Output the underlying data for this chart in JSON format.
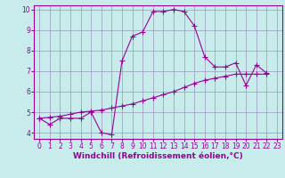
{
  "xlabel": "Windchill (Refroidissement éolien,°C)",
  "background_color": "#c8ecec",
  "line_color": "#990099",
  "grid_color": "#9999bb",
  "xlim": [
    -0.5,
    23.5
  ],
  "ylim": [
    3.7,
    10.2
  ],
  "xticks": [
    0,
    1,
    2,
    3,
    4,
    5,
    6,
    7,
    8,
    9,
    10,
    11,
    12,
    13,
    14,
    15,
    16,
    17,
    18,
    19,
    20,
    21,
    22,
    23
  ],
  "yticks": [
    4,
    5,
    6,
    7,
    8,
    9,
    10
  ],
  "curve1_x": [
    0,
    1,
    2,
    3,
    4,
    5,
    6,
    7,
    8,
    9,
    10,
    11,
    12,
    13,
    14,
    15,
    16,
    17,
    18,
    19,
    20,
    21,
    22
  ],
  "curve1_y": [
    4.7,
    4.4,
    4.7,
    4.7,
    4.7,
    5.0,
    4.0,
    3.9,
    7.5,
    8.7,
    8.9,
    9.9,
    9.9,
    10.0,
    9.9,
    9.2,
    7.7,
    7.2,
    7.2,
    7.4,
    6.3,
    7.3,
    6.9
  ],
  "curve2_x": [
    0,
    1,
    2,
    3,
    4,
    5,
    6,
    7,
    8,
    9,
    10,
    11,
    12,
    13,
    14,
    15,
    16,
    17,
    18,
    19,
    20,
    21,
    22
  ],
  "curve2_y": [
    4.7,
    4.75,
    4.8,
    4.9,
    5.0,
    5.05,
    5.1,
    5.2,
    5.3,
    5.4,
    5.55,
    5.7,
    5.85,
    6.0,
    6.2,
    6.4,
    6.55,
    6.65,
    6.75,
    6.85,
    6.85,
    6.85,
    6.85
  ],
  "markersize": 4,
  "linewidth": 0.8,
  "tick_fontsize": 5.5,
  "xlabel_fontsize": 6.5
}
